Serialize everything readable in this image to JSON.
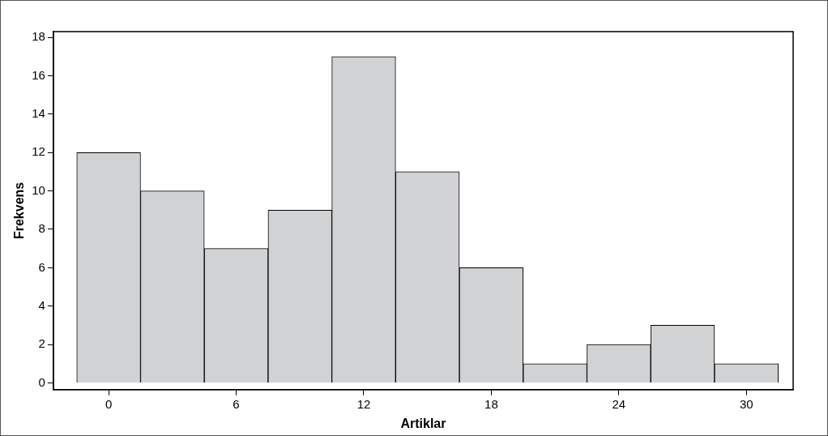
{
  "chart_data": {
    "type": "histogram",
    "xlabel": "Artiklar",
    "ylabel": "Frekvens",
    "bins": [
      -1.5,
      1.5,
      4.5,
      7.5,
      10.5,
      13.5,
      16.5,
      19.5,
      22.5,
      25.5,
      28.5,
      31.5
    ],
    "values": [
      12,
      10,
      7,
      9,
      17,
      11,
      6,
      1,
      2,
      3,
      1
    ],
    "color": "#d1d2d4",
    "xlim": [
      -2.6,
      32.2
    ],
    "xticks": [
      0,
      6,
      12,
      18,
      24,
      30
    ],
    "ylim": [
      -0.35,
      18.3
    ],
    "yticks": [
      0,
      2,
      4,
      6,
      8,
      10,
      12,
      14,
      16,
      18
    ],
    "grid": false,
    "legend": false
  }
}
